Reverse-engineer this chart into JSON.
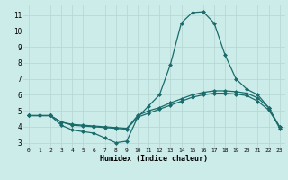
{
  "xlabel": "Humidex (Indice chaleur)",
  "xlim": [
    -0.5,
    23.5
  ],
  "ylim": [
    2.7,
    11.6
  ],
  "bg_color": "#ccecea",
  "line_color": "#1a6b6b",
  "grid_color": "#b8d8d6",
  "x_ticks": [
    0,
    1,
    2,
    3,
    4,
    5,
    6,
    7,
    8,
    9,
    10,
    11,
    12,
    13,
    14,
    15,
    16,
    17,
    18,
    19,
    20,
    21,
    22,
    23
  ],
  "y_ticks": [
    3,
    4,
    5,
    6,
    7,
    8,
    9,
    10,
    11
  ],
  "line1_x": [
    0,
    1,
    2,
    3,
    4,
    5,
    6,
    7,
    8,
    9,
    10,
    11,
    12,
    13,
    14,
    15,
    16,
    17,
    18,
    19,
    20,
    21,
    22,
    23
  ],
  "line1_y": [
    4.7,
    4.7,
    4.7,
    4.1,
    3.8,
    3.7,
    3.6,
    3.3,
    3.0,
    3.1,
    4.6,
    5.3,
    6.0,
    7.9,
    10.5,
    11.15,
    11.2,
    10.5,
    8.5,
    7.0,
    6.35,
    6.0,
    5.2,
    3.9
  ],
  "line2_x": [
    0,
    1,
    2,
    3,
    4,
    5,
    6,
    7,
    8,
    9,
    10,
    11,
    12,
    13,
    14,
    15,
    16,
    17,
    18,
    19,
    20,
    21,
    22,
    23
  ],
  "line2_y": [
    4.7,
    4.7,
    4.7,
    4.3,
    4.15,
    4.1,
    4.05,
    4.0,
    3.95,
    3.9,
    4.7,
    5.0,
    5.2,
    5.5,
    5.75,
    6.0,
    6.15,
    6.25,
    6.25,
    6.2,
    6.1,
    5.8,
    5.2,
    4.0
  ],
  "line3_x": [
    0,
    1,
    2,
    3,
    4,
    5,
    6,
    7,
    8,
    9,
    10,
    11,
    12,
    13,
    14,
    15,
    16,
    17,
    18,
    19,
    20,
    21,
    22,
    23
  ],
  "line3_y": [
    4.7,
    4.7,
    4.7,
    4.3,
    4.1,
    4.05,
    4.0,
    3.95,
    3.9,
    3.85,
    4.6,
    4.85,
    5.1,
    5.35,
    5.6,
    5.85,
    6.0,
    6.1,
    6.1,
    6.05,
    5.95,
    5.6,
    5.05,
    4.0
  ]
}
